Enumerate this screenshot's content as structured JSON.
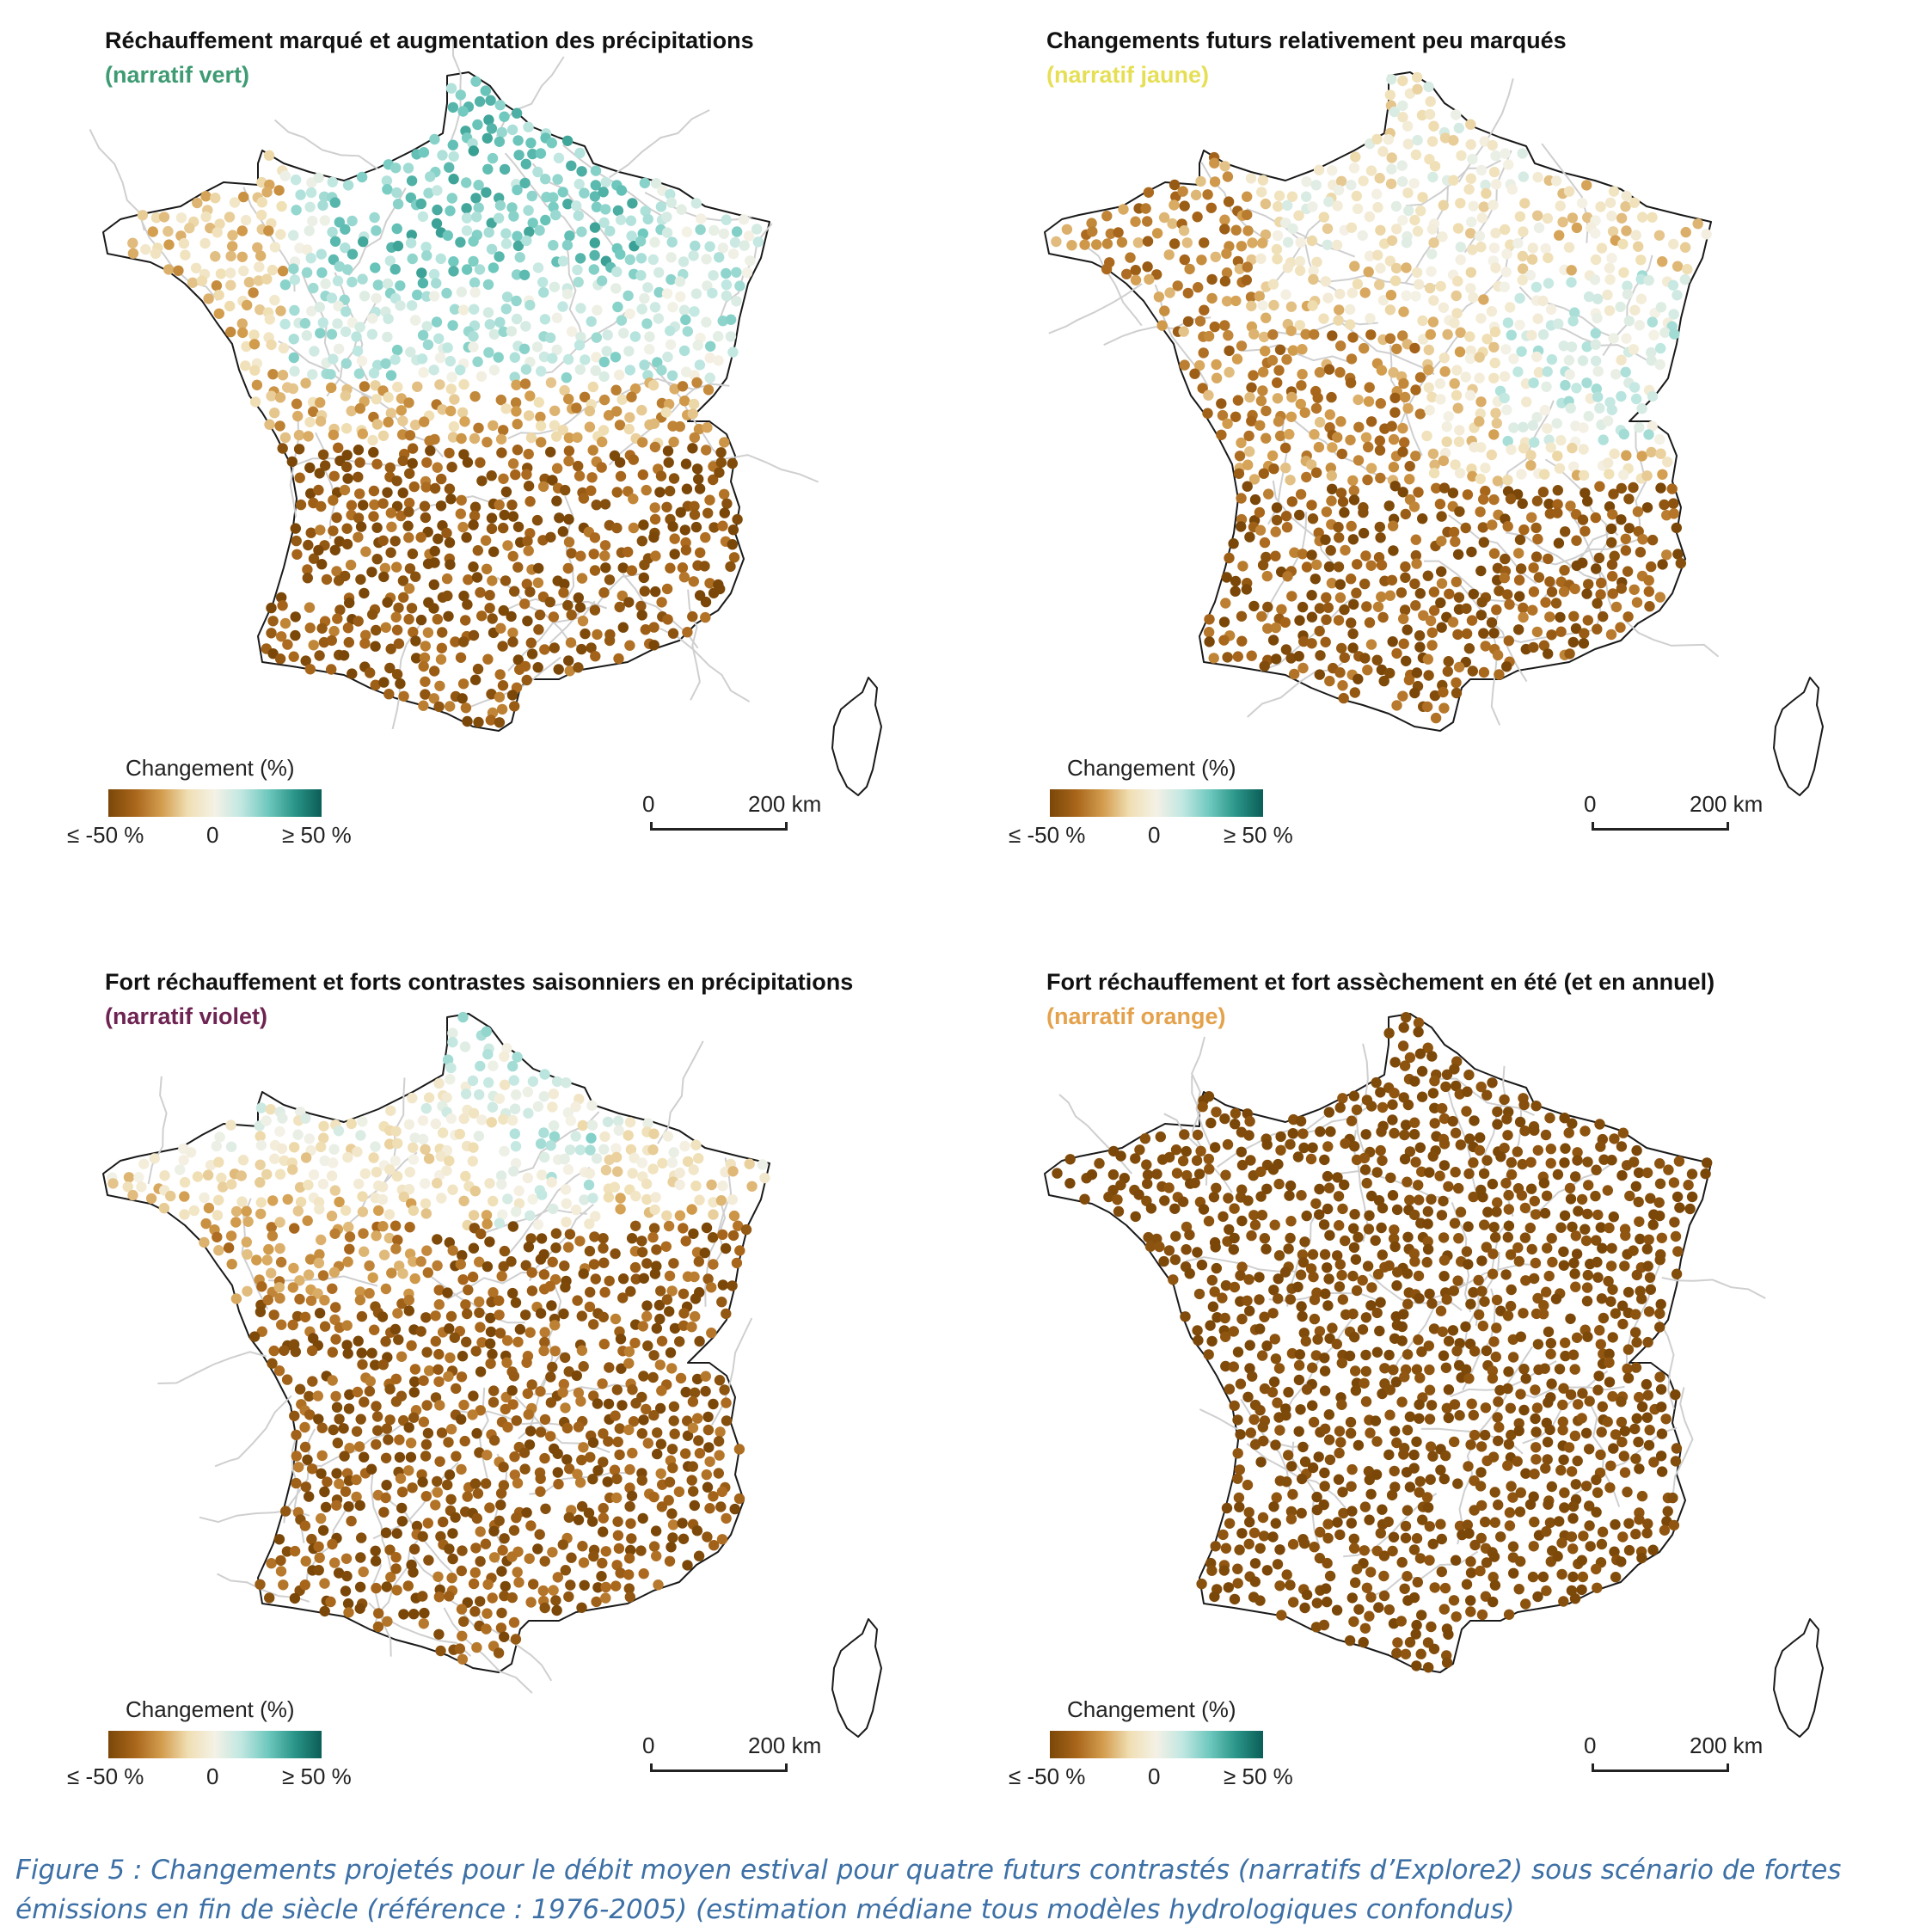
{
  "colors": {
    "scale": [
      "#7a4708",
      "#a8661b",
      "#d39d4e",
      "#f0dfb4",
      "#f4f1e6",
      "#bfe7e1",
      "#6ec8be",
      "#2a9488",
      "#0b5e57"
    ],
    "green_label": "#3f9b73",
    "yellow_label": "#e6df55",
    "violet_label": "#6e2452",
    "orange_label": "#e4a24c",
    "caption": "#3d70a6"
  },
  "panels": [
    {
      "title": "Réchauffement marqué et augmentation des précipitations",
      "subtitle": "(narratif vert)",
      "subtitle_color": "#3f9b73",
      "pattern": "green",
      "legend": {
        "title": "Changement (%)",
        "min_label": "≤ -50 %",
        "mid_label": "0",
        "max_label": "≥ 50 %"
      },
      "scale": {
        "start": "0",
        "end": "200 km"
      }
    },
    {
      "title": "Changements futurs relativement peu marqués",
      "subtitle": "(narratif jaune)",
      "subtitle_color": "#e6df55",
      "pattern": "yellow",
      "legend": {
        "title": "Changement (%)",
        "min_label": "≤ -50 %",
        "mid_label": "0",
        "max_label": "≥ 50 %"
      },
      "scale": {
        "start": "0",
        "end": "200 km"
      }
    },
    {
      "title": "Fort réchauffement et forts contrastes saisonniers en précipitations",
      "subtitle": "(narratif violet)",
      "subtitle_color": "#6e2452",
      "pattern": "violet",
      "legend": {
        "title": "Changement (%)",
        "min_label": "≤ -50 %",
        "mid_label": "0",
        "max_label": "≥ 50 %"
      },
      "scale": {
        "start": "0",
        "end": "200 km"
      }
    },
    {
      "title": "Fort réchauffement et fort assèchement en été (et en annuel)",
      "subtitle": "(narratif orange)",
      "subtitle_color": "#e4a24c",
      "pattern": "orange",
      "legend": {
        "title": "Changement (%)",
        "min_label": "≤ -50 %",
        "mid_label": "0",
        "max_label": "≥ 50 %"
      },
      "scale": {
        "start": "0",
        "end": "200 km"
      }
    }
  ],
  "caption": "Figure 5 : Changements projetés pour le débit moyen estival pour quatre futurs contrastés (narratifs d’Explore2) sous scénario de fortes émissions en fin de siècle (référence : 1976-2005) (estimation médiane tous modèles hydrologiques confondus)"
}
